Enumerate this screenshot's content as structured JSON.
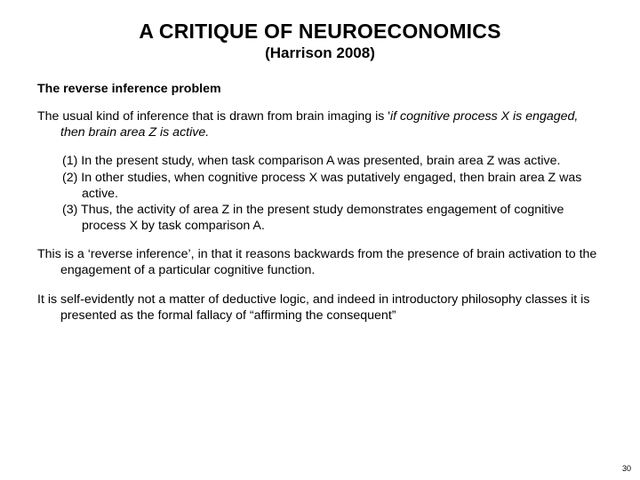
{
  "title": "A CRITIQUE OF NEUROECONOMICS",
  "subtitle": "(Harrison 2008)",
  "section_head": "The reverse inference problem",
  "para1_pre": "The usual kind of inference that is drawn from brain imaging is '",
  "para1_ital": "if cognitive process X is engaged, then brain area Z is active.",
  "num1": "(1) In the present study, when task comparison A was presented, brain area Z was active.",
  "num2": "(2) In other studies, when cognitive process X was putatively engaged, then brain area Z was active.",
  "num3": "(3) Thus, the activity of area Z in the present study demonstrates engagement of cognitive process X by task comparison A.",
  "para2": "This is a ‘reverse inference’, in that it reasons backwards from the presence of brain activation to the engagement of a particular cognitive function.",
  "para3": "It is self-evidently not a matter of deductive logic, and indeed in introductory philosophy classes it is presented as the formal fallacy of “affirming the consequent”",
  "page_number": "30",
  "colors": {
    "bg": "#ffffff",
    "text": "#000000"
  }
}
